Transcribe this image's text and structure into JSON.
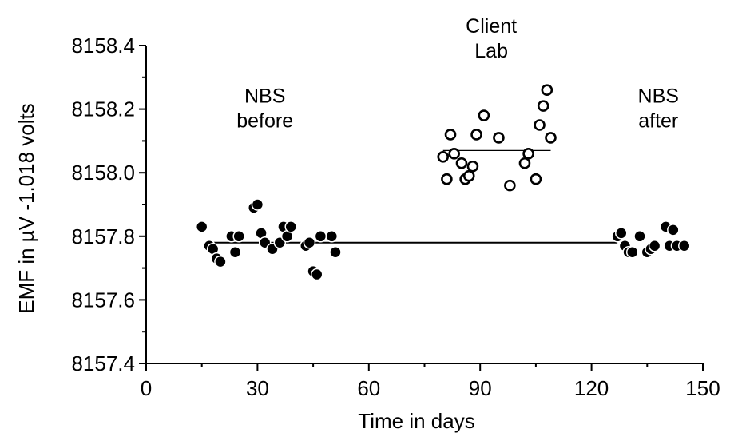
{
  "chart_data": {
    "type": "scatter",
    "xlabel": "Time in days",
    "ylabel": "EMF in µV -1.018 volts",
    "xlim": [
      0,
      150
    ],
    "ylim": [
      8157.4,
      8158.4
    ],
    "x_ticks": [
      0,
      30,
      60,
      90,
      120,
      150
    ],
    "y_ticks": [
      8157.4,
      8157.6,
      8157.8,
      8158.0,
      8158.2,
      8158.4
    ],
    "x_tick_labels": [
      "0",
      "30",
      "60",
      "90",
      "120",
      "150"
    ],
    "y_tick_labels": [
      "8157.4",
      "8157.6",
      "8157.8",
      "8158.0",
      "8158.2",
      "8158.4"
    ],
    "grid": false,
    "annotations": [
      {
        "lines": [
          "NBS",
          "before"
        ],
        "x": 32,
        "y": 8158.22
      },
      {
        "lines": [
          "Client",
          "Lab"
        ],
        "x": 93,
        "y": 8158.44
      },
      {
        "lines": [
          "NBS",
          "after"
        ],
        "x": 138,
        "y": 8158.22
      }
    ],
    "reference_lines": [
      {
        "x": [
          16,
          127
        ],
        "y": 8157.78,
        "style": "solid"
      },
      {
        "x": [
          80,
          109
        ],
        "y": 8158.07,
        "style": "thin"
      }
    ],
    "series": [
      {
        "marker": "filled",
        "points": [
          [
            15,
            8157.83
          ],
          [
            17,
            8157.77
          ],
          [
            18,
            8157.76
          ],
          [
            19,
            8157.73
          ],
          [
            20,
            8157.72
          ],
          [
            23,
            8157.8
          ],
          [
            24,
            8157.75
          ],
          [
            25,
            8157.8
          ],
          [
            29,
            8157.89
          ],
          [
            30,
            8157.9
          ],
          [
            31,
            8157.81
          ],
          [
            32,
            8157.78
          ],
          [
            34,
            8157.76
          ],
          [
            36,
            8157.78
          ],
          [
            37,
            8157.83
          ],
          [
            38,
            8157.8
          ],
          [
            39,
            8157.83
          ],
          [
            43,
            8157.77
          ],
          [
            44,
            8157.78
          ],
          [
            45,
            8157.69
          ],
          [
            46,
            8157.68
          ],
          [
            47,
            8157.8
          ],
          [
            50,
            8157.8
          ],
          [
            51,
            8157.75
          ],
          [
            127,
            8157.8
          ],
          [
            128,
            8157.81
          ],
          [
            129,
            8157.77
          ],
          [
            130,
            8157.75
          ],
          [
            131,
            8157.75
          ],
          [
            133,
            8157.8
          ],
          [
            135,
            8157.75
          ],
          [
            136,
            8157.76
          ],
          [
            137,
            8157.77
          ],
          [
            140,
            8157.83
          ],
          [
            141,
            8157.77
          ],
          [
            142,
            8157.82
          ],
          [
            143,
            8157.77
          ],
          [
            145,
            8157.77
          ]
        ]
      },
      {
        "marker": "open",
        "points": [
          [
            80,
            8158.05
          ],
          [
            81,
            8157.98
          ],
          [
            82,
            8158.12
          ],
          [
            83,
            8158.06
          ],
          [
            85,
            8158.03
          ],
          [
            86,
            8157.98
          ],
          [
            87,
            8157.99
          ],
          [
            88,
            8158.02
          ],
          [
            89,
            8158.12
          ],
          [
            91,
            8158.18
          ],
          [
            95,
            8158.11
          ],
          [
            98,
            8157.96
          ],
          [
            102,
            8158.03
          ],
          [
            103,
            8158.06
          ],
          [
            105,
            8157.98
          ],
          [
            106,
            8158.15
          ],
          [
            107,
            8158.21
          ],
          [
            108,
            8158.26
          ],
          [
            109,
            8158.11
          ]
        ]
      }
    ]
  }
}
